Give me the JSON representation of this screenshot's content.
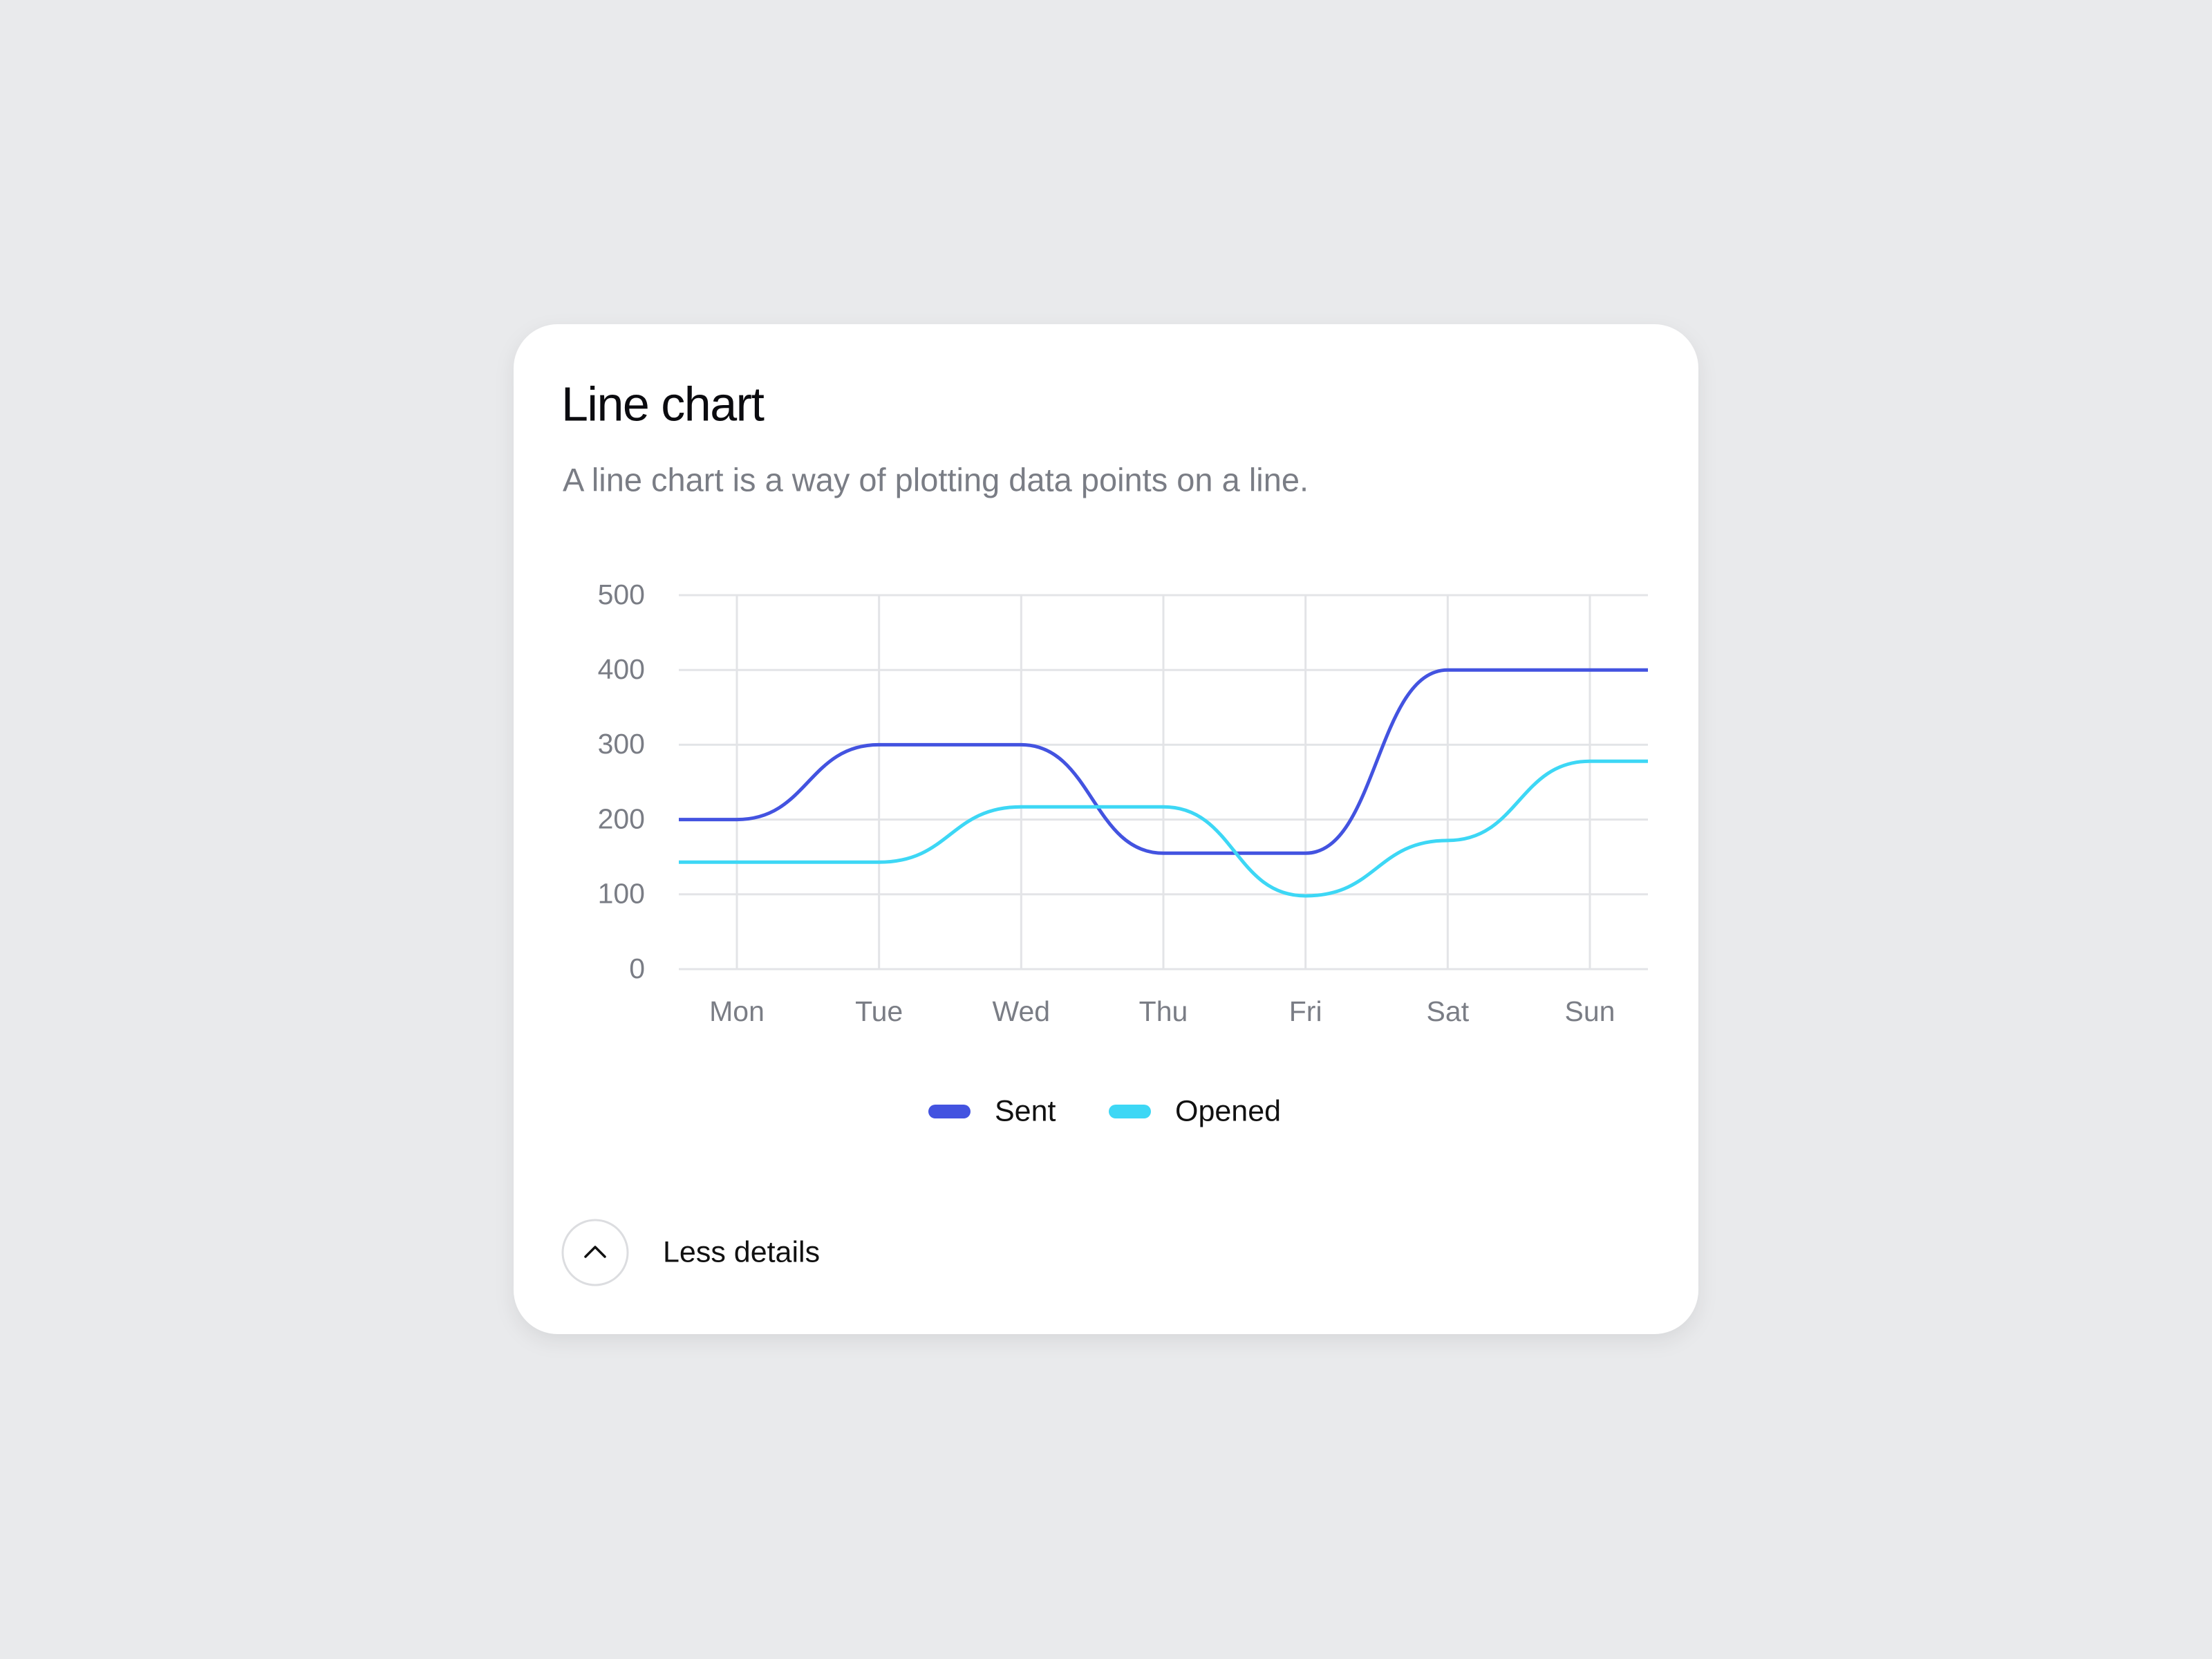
{
  "chart_data": {
    "type": "line",
    "title": "Line chart",
    "subtitle": "A line chart is a way of plotting data points on a line.",
    "categories": [
      "Mon",
      "Tue",
      "Wed",
      "Thu",
      "Fri",
      "Sat",
      "Sun"
    ],
    "series": [
      {
        "name": "Sent",
        "color": "#4353e0",
        "values": [
          200,
          300,
          300,
          155,
          155,
          400,
          400
        ]
      },
      {
        "name": "Opened",
        "color": "#3dd7f5",
        "values": [
          143,
          143,
          217,
          217,
          98,
          172,
          278
        ]
      }
    ],
    "ylim": [
      0,
      500
    ],
    "yticks": [
      0,
      100,
      200,
      300,
      400,
      500
    ],
    "grid": true,
    "legend": "bottom"
  },
  "toggle": {
    "label": "Less details"
  }
}
